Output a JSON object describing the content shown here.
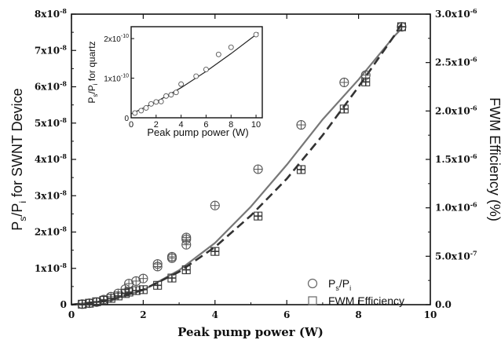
{
  "chart_data": [
    {
      "type": "scatter",
      "xlabel": "Peak pump power (W)",
      "ylabel_left": {
        "main": "P",
        "sub1": "s",
        "mid": "/P",
        "sub2": "i",
        "rest": " for SWNT Device"
      },
      "ylabel_right": "FWM Efficiency (%)",
      "xlim": [
        0,
        10
      ],
      "ylim_left": [
        0,
        8e-08
      ],
      "ylim_right": [
        0,
        3e-06
      ],
      "x_ticks": [
        "0",
        "2",
        "4",
        "6",
        "8",
        "10"
      ],
      "y_left_ticks": [
        {
          "mant": "0",
          "exp": ""
        },
        {
          "mant": "1x10",
          "exp": "-8"
        },
        {
          "mant": "2x10",
          "exp": "-8"
        },
        {
          "mant": "3x10",
          "exp": "-8"
        },
        {
          "mant": "4x10",
          "exp": "-8"
        },
        {
          "mant": "5x10",
          "exp": "-8"
        },
        {
          "mant": "6x10",
          "exp": "-8"
        },
        {
          "mant": "7x10",
          "exp": "-8"
        },
        {
          "mant": "8x10",
          "exp": "-8"
        }
      ],
      "y_right_ticks": [
        {
          "mant": "0.0",
          "exp": ""
        },
        {
          "mant": "5.0x10",
          "exp": "-7"
        },
        {
          "mant": "1.0x10",
          "exp": "-6"
        },
        {
          "mant": "1.5x10",
          "exp": "-6"
        },
        {
          "mant": "2.0x10",
          "exp": "-6"
        },
        {
          "mant": "2.5x10",
          "exp": "-6"
        },
        {
          "mant": "3.0x10",
          "exp": "-6"
        }
      ],
      "legend": {
        "position": "lower-right",
        "entries": [
          {
            "symbol": "circle",
            "main": "P",
            "sub1": "s",
            "mid": "/P",
            "sub2": "i"
          },
          {
            "symbol": "square",
            "text": "FWM Efficiency"
          }
        ]
      },
      "series": [
        {
          "marker": "circle",
          "axis": "left",
          "x": [
            0.3,
            0.5,
            0.7,
            0.9,
            1.1,
            1.3,
            1.5,
            1.6,
            1.8,
            2.0,
            2.4,
            2.4,
            2.8,
            2.8,
            3.2,
            3.2,
            3.2,
            4.0,
            5.2,
            6.4,
            7.6,
            8.2,
            9.2
          ],
          "y": [
            1.5e-10,
            4e-10,
            7e-10,
            1.4e-09,
            2.2e-09,
            3.1e-09,
            4.3e-09,
            5.8e-09,
            6.5e-09,
            7.2e-09,
            1.05e-08,
            1.12e-08,
            1.28e-08,
            1.32e-08,
            1.65e-08,
            1.8e-08,
            1.85e-08,
            2.73e-08,
            3.73e-08,
            4.95e-08,
            6.12e-08,
            6.32e-08,
            7.65e-08
          ]
        },
        {
          "marker": "square",
          "axis": "right",
          "x": [
            0.3,
            0.5,
            0.7,
            0.9,
            1.1,
            1.3,
            1.5,
            1.6,
            1.8,
            2.0,
            2.4,
            2.8,
            3.2,
            4.0,
            5.2,
            6.4,
            7.6,
            8.2,
            9.2
          ],
          "y": [
            5e-09,
            1.5e-08,
            3e-08,
            4.5e-08,
            6.5e-08,
            9e-08,
            1.15e-07,
            1.3e-07,
            1.45e-07,
            1.55e-07,
            2e-07,
            2.75e-07,
            3.6e-07,
            5.5e-07,
            9.15e-07,
            1.395e-06,
            2.02e-06,
            2.3e-06,
            2.87e-06
          ]
        }
      ],
      "fits": [
        {
          "style": "solid",
          "axis": "left",
          "x": [
            0,
            1,
            2,
            3,
            4,
            5,
            6,
            7,
            8,
            9,
            9.2
          ],
          "y": [
            0,
            1e-09,
            4e-09,
            9.5e-09,
            1.7e-08,
            2.7e-08,
            3.85e-08,
            5.1e-08,
            6.2e-08,
            7.4e-08,
            7.6e-08
          ]
        },
        {
          "style": "dashed",
          "axis": "right",
          "x": [
            0,
            1,
            2,
            3,
            4,
            5,
            6,
            7,
            8,
            9,
            9.2
          ],
          "y": [
            0,
            4e-08,
            1.55e-07,
            3.4e-07,
            5.95e-07,
            9.2e-07,
            1.3e-06,
            1.75e-06,
            2.25e-06,
            2.78e-06,
            2.9e-06
          ]
        }
      ]
    },
    {
      "type": "scatter",
      "inset": true,
      "xlabel": "Peak pump power (W)",
      "ylabel": {
        "main": "P",
        "sub1": "s",
        "mid": "/P",
        "sub2": "i",
        "rest": " for quartz"
      },
      "xlim": [
        0,
        10.5
      ],
      "ylim": [
        0,
        2.3e-10
      ],
      "x_ticks": [
        "0",
        "2",
        "4",
        "6",
        "8",
        "10"
      ],
      "y_ticks": [
        {
          "mant": "0",
          "exp": ""
        },
        {
          "mant": "1x10",
          "exp": "-10"
        },
        {
          "mant": "2x10",
          "exp": "-10"
        }
      ],
      "series": [
        {
          "marker": "circle",
          "x": [
            0.3,
            0.8,
            1.2,
            1.6,
            2.0,
            2.4,
            2.8,
            3.2,
            3.6,
            4.0,
            5.2,
            6.0,
            7.0,
            8.0,
            10.0
          ],
          "y": [
            1.2e-11,
            1.8e-11,
            2.5e-11,
            3.5e-11,
            4e-11,
            4.1e-11,
            5.5e-11,
            5.8e-11,
            6.4e-11,
            8.5e-11,
            1.05e-10,
            1.22e-10,
            1.6e-10,
            1.78e-10,
            2.1e-10
          ]
        }
      ],
      "fits": [
        {
          "style": "solid",
          "x": [
            0,
            2,
            4,
            6,
            8,
            10,
            10.2
          ],
          "y": [
            1e-11,
            4e-11,
            7.6e-11,
            1.17e-10,
            1.62e-10,
            2.1e-10,
            2.15e-10
          ]
        }
      ]
    }
  ]
}
